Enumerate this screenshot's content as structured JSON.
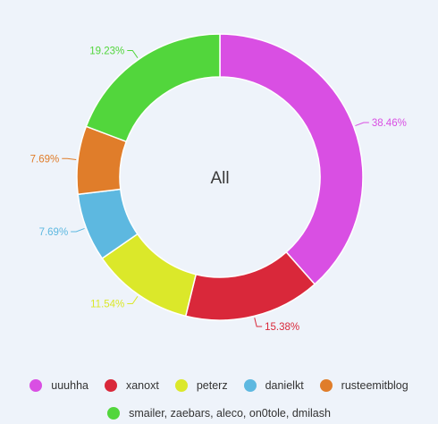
{
  "chart_data": {
    "type": "pie",
    "center_label": "All",
    "slices": [
      {
        "name": "uuuhha",
        "value": 38.46,
        "label": "38.46%",
        "color": "#d94fe3"
      },
      {
        "name": "xanoxt",
        "value": 15.38,
        "label": "15.38%",
        "color": "#d9283a"
      },
      {
        "name": "peterz",
        "value": 11.54,
        "label": "11.54%",
        "color": "#dbe82a"
      },
      {
        "name": "danielkt",
        "value": 7.69,
        "label": "7.69%",
        "color": "#5db8e0"
      },
      {
        "name": "rusteemitblog",
        "value": 7.69,
        "label": "7.69%",
        "color": "#e07d2a"
      },
      {
        "name": "smailer, zaebars, aleco, on0tole, dmilash",
        "value": 19.23,
        "label": "19.23%",
        "color": "#52d63c"
      }
    ],
    "legend_position": "bottom"
  }
}
